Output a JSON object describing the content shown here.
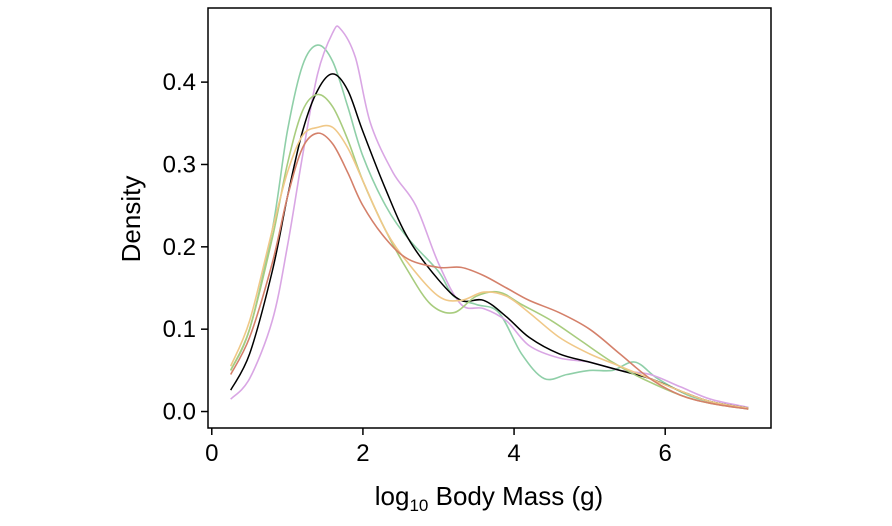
{
  "chart_data": {
    "type": "line",
    "title": "",
    "xlabel_main": "log",
    "xlabel_sub": "10",
    "xlabel_rest": " Body Mass (g)",
    "ylabel": "Density",
    "xlim": [
      -0.05,
      7.4
    ],
    "ylim": [
      -0.02,
      0.49
    ],
    "xticks": [
      0,
      2,
      4,
      6
    ],
    "xtick_labels": [
      "0",
      "2",
      "4",
      "6"
    ],
    "yticks": [
      0.0,
      0.1,
      0.2,
      0.3,
      0.4
    ],
    "ytick_labels": [
      "0.0",
      "0.1",
      "0.2",
      "0.3",
      "0.4"
    ],
    "grid": false,
    "legend": "none",
    "series": [
      {
        "color": "#8fcfa8",
        "points": [
          [
            0.25,
            0.05
          ],
          [
            0.5,
            0.1
          ],
          [
            0.8,
            0.22
          ],
          [
            1.0,
            0.34
          ],
          [
            1.2,
            0.42
          ],
          [
            1.4,
            0.445
          ],
          [
            1.6,
            0.425
          ],
          [
            1.8,
            0.37
          ],
          [
            2.0,
            0.31
          ],
          [
            2.3,
            0.25
          ],
          [
            2.6,
            0.21
          ],
          [
            3.0,
            0.17
          ],
          [
            3.2,
            0.14
          ],
          [
            3.5,
            0.13
          ],
          [
            3.8,
            0.12
          ],
          [
            4.1,
            0.07
          ],
          [
            4.4,
            0.04
          ],
          [
            4.7,
            0.045
          ],
          [
            5.0,
            0.05
          ],
          [
            5.3,
            0.05
          ],
          [
            5.6,
            0.06
          ],
          [
            5.9,
            0.04
          ],
          [
            6.3,
            0.02
          ],
          [
            6.7,
            0.01
          ],
          [
            7.1,
            0.005
          ]
        ]
      },
      {
        "color": "#d9a6e4",
        "points": [
          [
            0.25,
            0.015
          ],
          [
            0.5,
            0.04
          ],
          [
            0.8,
            0.11
          ],
          [
            1.0,
            0.2
          ],
          [
            1.2,
            0.31
          ],
          [
            1.4,
            0.41
          ],
          [
            1.6,
            0.46
          ],
          [
            1.7,
            0.465
          ],
          [
            1.9,
            0.43
          ],
          [
            2.1,
            0.35
          ],
          [
            2.4,
            0.29
          ],
          [
            2.7,
            0.25
          ],
          [
            3.0,
            0.18
          ],
          [
            3.3,
            0.13
          ],
          [
            3.6,
            0.125
          ],
          [
            3.9,
            0.11
          ],
          [
            4.2,
            0.08
          ],
          [
            4.6,
            0.065
          ],
          [
            5.0,
            0.06
          ],
          [
            5.4,
            0.05
          ],
          [
            5.8,
            0.045
          ],
          [
            6.2,
            0.03
          ],
          [
            6.6,
            0.015
          ],
          [
            7.1,
            0.005
          ]
        ]
      },
      {
        "color": "#000000",
        "points": [
          [
            0.25,
            0.026
          ],
          [
            0.5,
            0.07
          ],
          [
            0.8,
            0.17
          ],
          [
            1.0,
            0.26
          ],
          [
            1.2,
            0.34
          ],
          [
            1.4,
            0.39
          ],
          [
            1.6,
            0.41
          ],
          [
            1.8,
            0.39
          ],
          [
            2.0,
            0.34
          ],
          [
            2.3,
            0.27
          ],
          [
            2.6,
            0.21
          ],
          [
            3.0,
            0.16
          ],
          [
            3.3,
            0.135
          ],
          [
            3.6,
            0.135
          ],
          [
            3.9,
            0.115
          ],
          [
            4.2,
            0.09
          ],
          [
            4.6,
            0.07
          ],
          [
            5.0,
            0.06
          ],
          [
            5.4,
            0.05
          ],
          [
            5.8,
            0.04
          ],
          [
            6.2,
            0.025
          ],
          [
            6.6,
            0.012
          ],
          [
            7.1,
            0.004
          ]
        ]
      },
      {
        "color": "#a8cc7e",
        "points": [
          [
            0.25,
            0.05
          ],
          [
            0.5,
            0.1
          ],
          [
            0.8,
            0.21
          ],
          [
            1.0,
            0.3
          ],
          [
            1.2,
            0.365
          ],
          [
            1.4,
            0.385
          ],
          [
            1.6,
            0.37
          ],
          [
            1.8,
            0.33
          ],
          [
            2.0,
            0.28
          ],
          [
            2.3,
            0.22
          ],
          [
            2.6,
            0.17
          ],
          [
            2.9,
            0.13
          ],
          [
            3.2,
            0.12
          ],
          [
            3.5,
            0.14
          ],
          [
            3.8,
            0.145
          ],
          [
            4.1,
            0.13
          ],
          [
            4.5,
            0.11
          ],
          [
            4.9,
            0.085
          ],
          [
            5.3,
            0.06
          ],
          [
            5.7,
            0.04
          ],
          [
            6.2,
            0.02
          ],
          [
            6.6,
            0.01
          ],
          [
            7.1,
            0.003
          ]
        ]
      },
      {
        "color": "#f0c888",
        "points": [
          [
            0.25,
            0.055
          ],
          [
            0.5,
            0.11
          ],
          [
            0.8,
            0.22
          ],
          [
            1.0,
            0.29
          ],
          [
            1.2,
            0.335
          ],
          [
            1.4,
            0.345
          ],
          [
            1.6,
            0.345
          ],
          [
            1.8,
            0.32
          ],
          [
            2.0,
            0.28
          ],
          [
            2.3,
            0.22
          ],
          [
            2.6,
            0.18
          ],
          [
            3.0,
            0.14
          ],
          [
            3.3,
            0.135
          ],
          [
            3.6,
            0.145
          ],
          [
            3.9,
            0.14
          ],
          [
            4.2,
            0.12
          ],
          [
            4.6,
            0.09
          ],
          [
            5.0,
            0.07
          ],
          [
            5.4,
            0.055
          ],
          [
            5.8,
            0.04
          ],
          [
            6.2,
            0.025
          ],
          [
            6.6,
            0.012
          ],
          [
            7.1,
            0.004
          ]
        ]
      },
      {
        "color": "#d4806a",
        "points": [
          [
            0.25,
            0.045
          ],
          [
            0.5,
            0.09
          ],
          [
            0.8,
            0.18
          ],
          [
            1.0,
            0.26
          ],
          [
            1.2,
            0.32
          ],
          [
            1.4,
            0.338
          ],
          [
            1.6,
            0.325
          ],
          [
            1.8,
            0.29
          ],
          [
            2.0,
            0.25
          ],
          [
            2.3,
            0.21
          ],
          [
            2.6,
            0.185
          ],
          [
            3.0,
            0.175
          ],
          [
            3.3,
            0.175
          ],
          [
            3.6,
            0.165
          ],
          [
            3.9,
            0.15
          ],
          [
            4.2,
            0.135
          ],
          [
            4.6,
            0.12
          ],
          [
            5.0,
            0.1
          ],
          [
            5.4,
            0.07
          ],
          [
            5.8,
            0.04
          ],
          [
            6.2,
            0.02
          ],
          [
            6.6,
            0.01
          ],
          [
            7.1,
            0.003
          ]
        ]
      }
    ]
  }
}
